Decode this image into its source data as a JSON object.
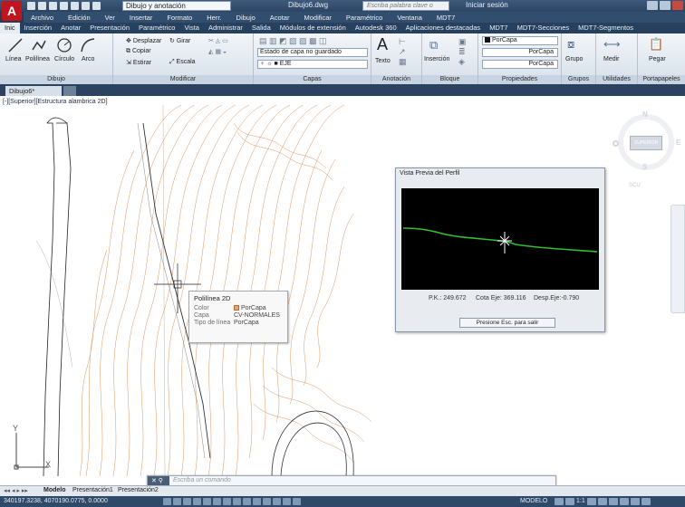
{
  "titlebar": {
    "app_logo": "A",
    "workspace": "Dibujo y anotación",
    "document": "Dibujo6.dwg",
    "search_placeholder": "Escriba palabra clave o frase",
    "signin": "Iniciar sesión"
  },
  "menubar": [
    "Archivo",
    "Edición",
    "Ver",
    "Insertar",
    "Formato",
    "Herr.",
    "Dibujo",
    "Acotar",
    "Modificar",
    "Paramétrico",
    "Ventana",
    "MDT7"
  ],
  "ribbon_tabs": [
    "Inic",
    "Inserción",
    "Anotar",
    "Presentación",
    "Paramétrico",
    "Vista",
    "Administrar",
    "Salida",
    "Módulos de extensión",
    "Autodesk 360",
    "Aplicaciones destacadas",
    "MDT7",
    "MDT7-Secciones",
    "MDT7-Segmentos"
  ],
  "ribbon": {
    "draw": {
      "label": "Dibujo",
      "tools": [
        "Línea",
        "Polilínea",
        "Círculo",
        "Arco"
      ]
    },
    "modify": {
      "label": "Modificar",
      "tools": [
        "Desplazar",
        "Girar",
        "Copiar",
        "Estirar",
        "Escala"
      ]
    },
    "layers": {
      "label": "Capas",
      "state": "Estado de capa no guardado",
      "layer": "EJE"
    },
    "annotation": {
      "label": "Anotación",
      "text": "Texto"
    },
    "block": {
      "label": "Bloque",
      "insert": "Inserción"
    },
    "properties": {
      "label": "Propiedades",
      "color": "PorCapa",
      "linetype": "PorCapa",
      "lineweight": "PorCapa"
    },
    "groups": {
      "label": "Grupos",
      "group": "Grupo"
    },
    "utilities": {
      "label": "Utilidades",
      "measure": "Medir"
    },
    "clipboard": {
      "label": "Portapapeles",
      "paste": "Pegar"
    }
  },
  "doc_tab": "Dibujo6*",
  "viewport_label": "[-][Superior][Estructura alambrica 2D]",
  "viewcube": {
    "n": "N",
    "s": "S",
    "e": "E",
    "face": "SUPERIOR",
    "ucs": "SCU"
  },
  "tooltip": {
    "title": "Polilínea 2D",
    "rows": [
      {
        "k": "Color",
        "v": "PorCapa"
      },
      {
        "k": "Capa",
        "v": "CV-NORMALES"
      },
      {
        "k": "Tipo de línea",
        "v": "PorCapa"
      }
    ]
  },
  "profile": {
    "title": "Vista Previa del Perfil",
    "pk": "P.K.: 249.672",
    "cota": "Cota Eje: 369.116",
    "desp": "Desp.Eje:-0.790",
    "button": "Presione Esc. para salir"
  },
  "ucs": {
    "y": "Y",
    "x": "X"
  },
  "command": {
    "placeholder": "Escriba un comando"
  },
  "layout_tabs": [
    "Modelo",
    "Presentación1",
    "Presentación2"
  ],
  "status": {
    "coords": "340197.3238, 4070190.0775, 0.0000",
    "mode": "MODELO",
    "scale": "1:1"
  }
}
